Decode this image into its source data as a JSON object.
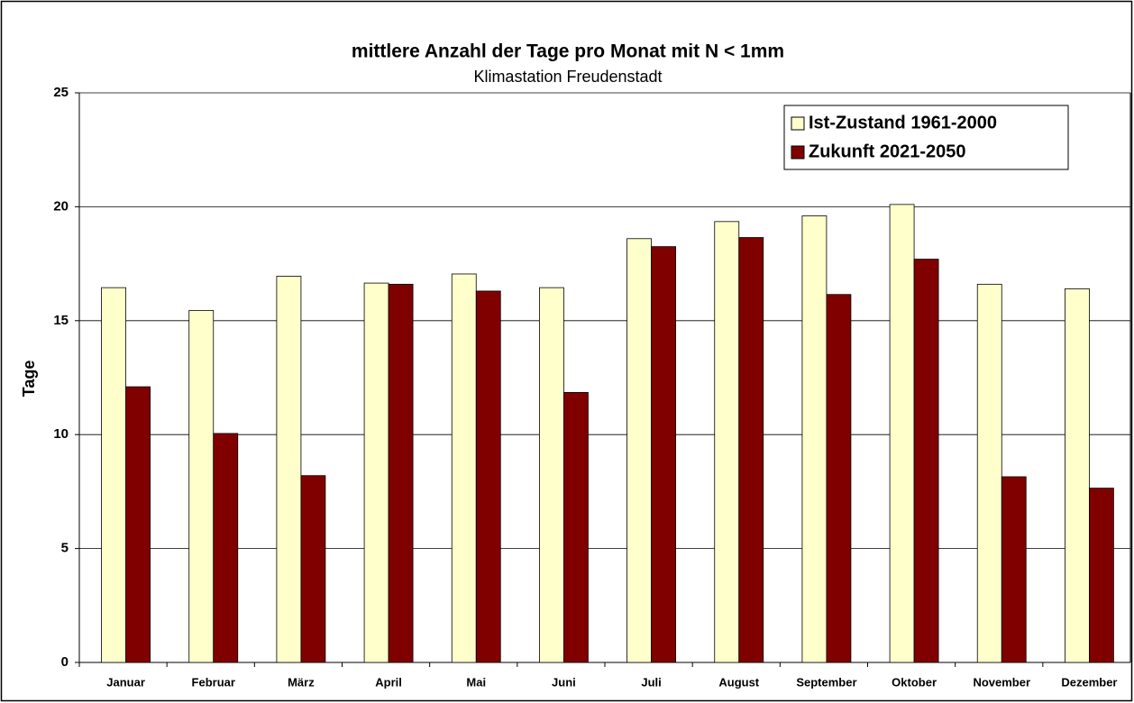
{
  "chart_data": {
    "type": "bar",
    "title": "mittlere Anzahl der Tage pro Monat mit N < 1mm",
    "subtitle": "Klimastation Freudenstadt",
    "y_label": "Tage",
    "categories": [
      "Januar",
      "Februar",
      "März",
      "April",
      "Mai",
      "Juni",
      "Juli",
      "August",
      "September",
      "Oktober",
      "November",
      "Dezember"
    ],
    "series": [
      {
        "name": "Ist-Zustand 1961-2000",
        "color": "#ffffcc",
        "values": [
          16.45,
          15.45,
          16.95,
          16.65,
          17.05,
          16.45,
          18.6,
          19.35,
          19.6,
          20.1,
          16.6,
          16.4
        ]
      },
      {
        "name": "Zukunft 2021-2050",
        "color": "#800000",
        "values": [
          12.1,
          10.05,
          8.2,
          16.6,
          16.3,
          11.85,
          18.25,
          18.65,
          16.15,
          17.7,
          8.15,
          7.65
        ]
      }
    ],
    "ylim": [
      0,
      25
    ],
    "yticks": [
      0,
      5,
      10,
      15,
      20,
      25
    ],
    "grid": true,
    "legend": "top-right"
  }
}
